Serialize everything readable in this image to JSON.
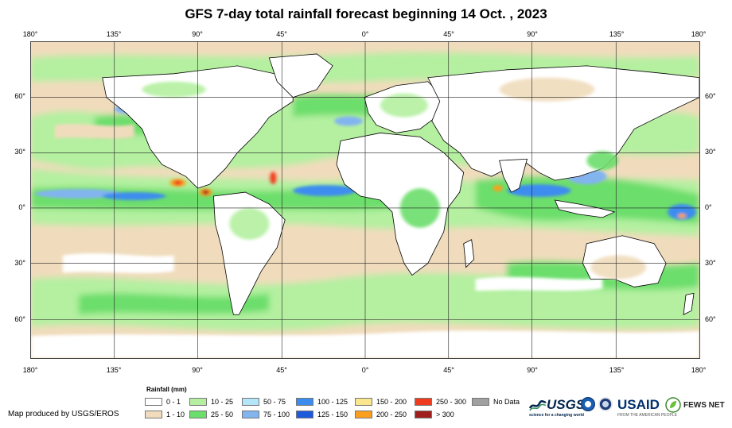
{
  "title": "GFS 7-day total rainfall forecast beginning 14 Oct. , 2023",
  "axes": {
    "lon_labels": [
      "180°",
      "135°",
      "90°",
      "45°",
      "0°",
      "45°",
      "90°",
      "135°",
      "180°"
    ],
    "lat_labels": [
      "60°",
      "30°",
      "0°",
      "30°",
      "60°"
    ]
  },
  "legend": {
    "title": "Rainfall (mm)",
    "items": [
      {
        "label": "0 - 1",
        "color": "#ffffff"
      },
      {
        "label": "1 - 10",
        "color": "#f0dcbc"
      },
      {
        "label": "10 - 25",
        "color": "#b4f0a0"
      },
      {
        "label": "25 - 50",
        "color": "#6cde6c"
      },
      {
        "label": "50 - 75",
        "color": "#b4e6fa"
      },
      {
        "label": "75 - 100",
        "color": "#82b4f0"
      },
      {
        "label": "100 - 125",
        "color": "#3c8cf0"
      },
      {
        "label": "125 - 150",
        "color": "#1e5adc"
      },
      {
        "label": "150 - 200",
        "color": "#fae68c"
      },
      {
        "label": "200 - 250",
        "color": "#faa01e"
      },
      {
        "label": "250 - 300",
        "color": "#f03c1e"
      },
      {
        "label": "> 300",
        "color": "#a01e1e"
      },
      {
        "label": "No Data",
        "color": "#a0a0a0"
      }
    ]
  },
  "credit": "Map produced by USGS/EROS",
  "logos": {
    "usgs": "USGS",
    "usgs_tagline": "science for a changing world",
    "usaid": "USAID",
    "usaid_tagline": "FROM THE AMERICAN PEOPLE",
    "fews": "FEWS NET"
  }
}
